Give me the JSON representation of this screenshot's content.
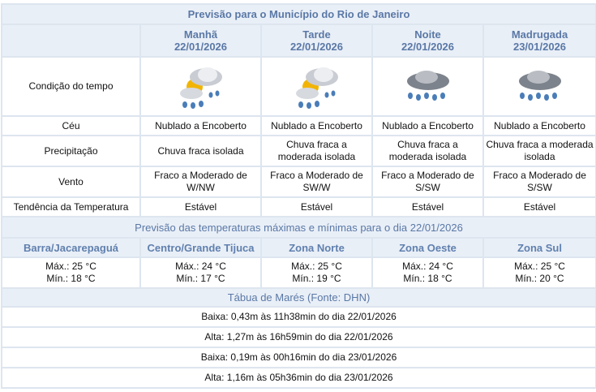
{
  "title": "Previsão para o Município do Rio de Janeiro",
  "periods": [
    {
      "name": "Manhã",
      "date": "22/01/2026",
      "icon": "sun-cloud-rain-icon",
      "ceu": "Nublado a Encoberto",
      "precip": "Chuva fraca isolada",
      "vento": "Fraco a Moderado de W/NW",
      "tendencia": "Estável"
    },
    {
      "name": "Tarde",
      "date": "22/01/2026",
      "icon": "sun-cloud-rain-icon",
      "ceu": "Nublado a Encoberto",
      "precip": "Chuva fraca a moderada isolada",
      "vento": "Fraco a Moderado de SW/W",
      "tendencia": "Estável"
    },
    {
      "name": "Noite",
      "date": "22/01/2026",
      "icon": "dark-cloud-rain-icon",
      "ceu": "Nublado a Encoberto",
      "precip": "Chuva fraca a moderada isolada",
      "vento": "Fraco a Moderado de S/SW",
      "tendencia": "Estável"
    },
    {
      "name": "Madrugada",
      "date": "23/01/2026",
      "icon": "dark-cloud-rain-icon",
      "ceu": "Nublado a Encoberto",
      "precip": "Chuva fraca a moderada isolada",
      "vento": "Fraco a Moderado de S/SW",
      "tendencia": "Estável"
    }
  ],
  "row_labels": {
    "condicao": "Condição do tempo",
    "ceu": "Céu",
    "precip": "Precipitação",
    "vento": "Vento",
    "tendencia": "Tendência da Temperatura"
  },
  "temp_title": "Previsão das temperaturas máximas e mínimas para o dia 22/01/2026",
  "zones": [
    {
      "name": "Barra/Jacarepaguá",
      "max": "Máx.: 25 °C",
      "min": "Mín.: 18 °C"
    },
    {
      "name": "Centro/Grande Tijuca",
      "max": "Máx.: 24 °C",
      "min": "Mín.: 17 °C"
    },
    {
      "name": "Zona Norte",
      "max": "Máx.: 25 °C",
      "min": "Mín.: 19 °C"
    },
    {
      "name": "Zona Oeste",
      "max": "Máx.: 24 °C",
      "min": "Mín.: 18 °C"
    },
    {
      "name": "Zona Sul",
      "max": "Máx.: 25 °C",
      "min": "Mín.: 20 °C"
    }
  ],
  "tide_title": "Tábua de Marés (Fonte: DHN)",
  "tides": [
    "Baixa: 0,43m às 11h38min do dia 22/01/2026",
    "Alta: 1,27m às 16h59min do dia 22/01/2026",
    "Baixa: 0,19m às 00h16min do dia 23/01/2026",
    "Alta: 1,16m às 05h36min do dia 23/01/2026"
  ]
}
